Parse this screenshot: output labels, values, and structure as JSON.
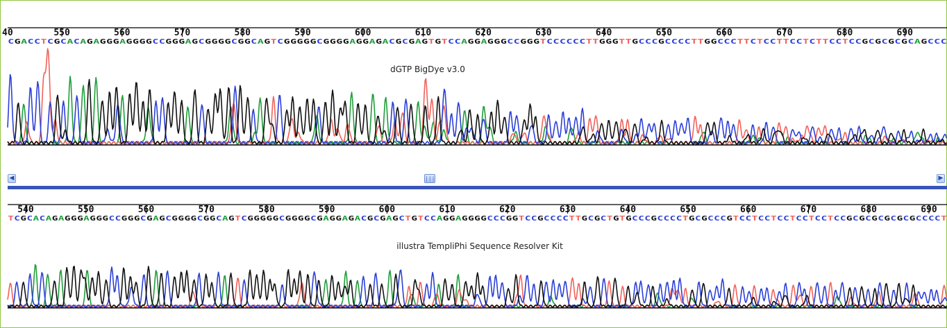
{
  "colors": {
    "A": "#1f9d3a",
    "C": "#2b3fd6",
    "G": "#111111",
    "T": "#f0625a",
    "frame_border": "#8dc63f",
    "divider": "#3a55b8"
  },
  "chart_data": [
    {
      "type": "line",
      "chart_kind": "sequencing chromatogram",
      "title": "dGTP BigDye v3.0",
      "base_positions": [
        550,
        560,
        570,
        580,
        590,
        600,
        610,
        620,
        630,
        640,
        650,
        660,
        670,
        680,
        690
      ],
      "partial_left_label": "40",
      "position_range": [
        541,
        697
      ],
      "sequence": "CGACCTCGCACAGAGGGAGGGGCCGGGAGCGGGGCGGCAGTCGGGGGCGGGGAGGAGACGCGAGTGTCCAGGAGGGCCGGGTCCCCCCTTGGGTTGCCCGCCCCTTGGCCCTTCTCCTTCCTCTTCCTCCGCGCGCGCAGCCC",
      "series": [
        {
          "name": "A",
          "color": "green"
        },
        {
          "name": "C",
          "color": "blue"
        },
        {
          "name": "G",
          "color": "black"
        },
        {
          "name": "T",
          "color": "red"
        }
      ],
      "grid": false,
      "legend": "none",
      "scrollbar": {
        "left_arrow": "◀",
        "thumb": "|||",
        "right_arrow": "▶",
        "thumb_fraction": 0.5
      }
    },
    {
      "type": "line",
      "chart_kind": "sequencing chromatogram",
      "title": "illustra TempliPhi Sequence Resolver Kit",
      "base_positions": [
        540,
        550,
        560,
        570,
        580,
        590,
        600,
        610,
        620,
        630,
        640,
        650,
        660,
        670,
        680,
        690
      ],
      "position_range": [
        537,
        693
      ],
      "sequence": "TCGCACAGAGGGAGGGCCGGGCGAGCGGGGCGGCAGTCGGGGGCGGGGCGAGGAGACGCGAGCTGTCCAGGAGGGGCCCGGTCCGCCCCTTGCGCTGTGCCCGCCCCTGCGCCCGTCCTCCTCCTCCTCCTCCGCGCGCGCGCGCCCCT",
      "series": [
        {
          "name": "A",
          "color": "green"
        },
        {
          "name": "C",
          "color": "blue"
        },
        {
          "name": "G",
          "color": "black"
        },
        {
          "name": "T",
          "color": "red"
        }
      ],
      "grid": false,
      "legend": "none"
    }
  ]
}
